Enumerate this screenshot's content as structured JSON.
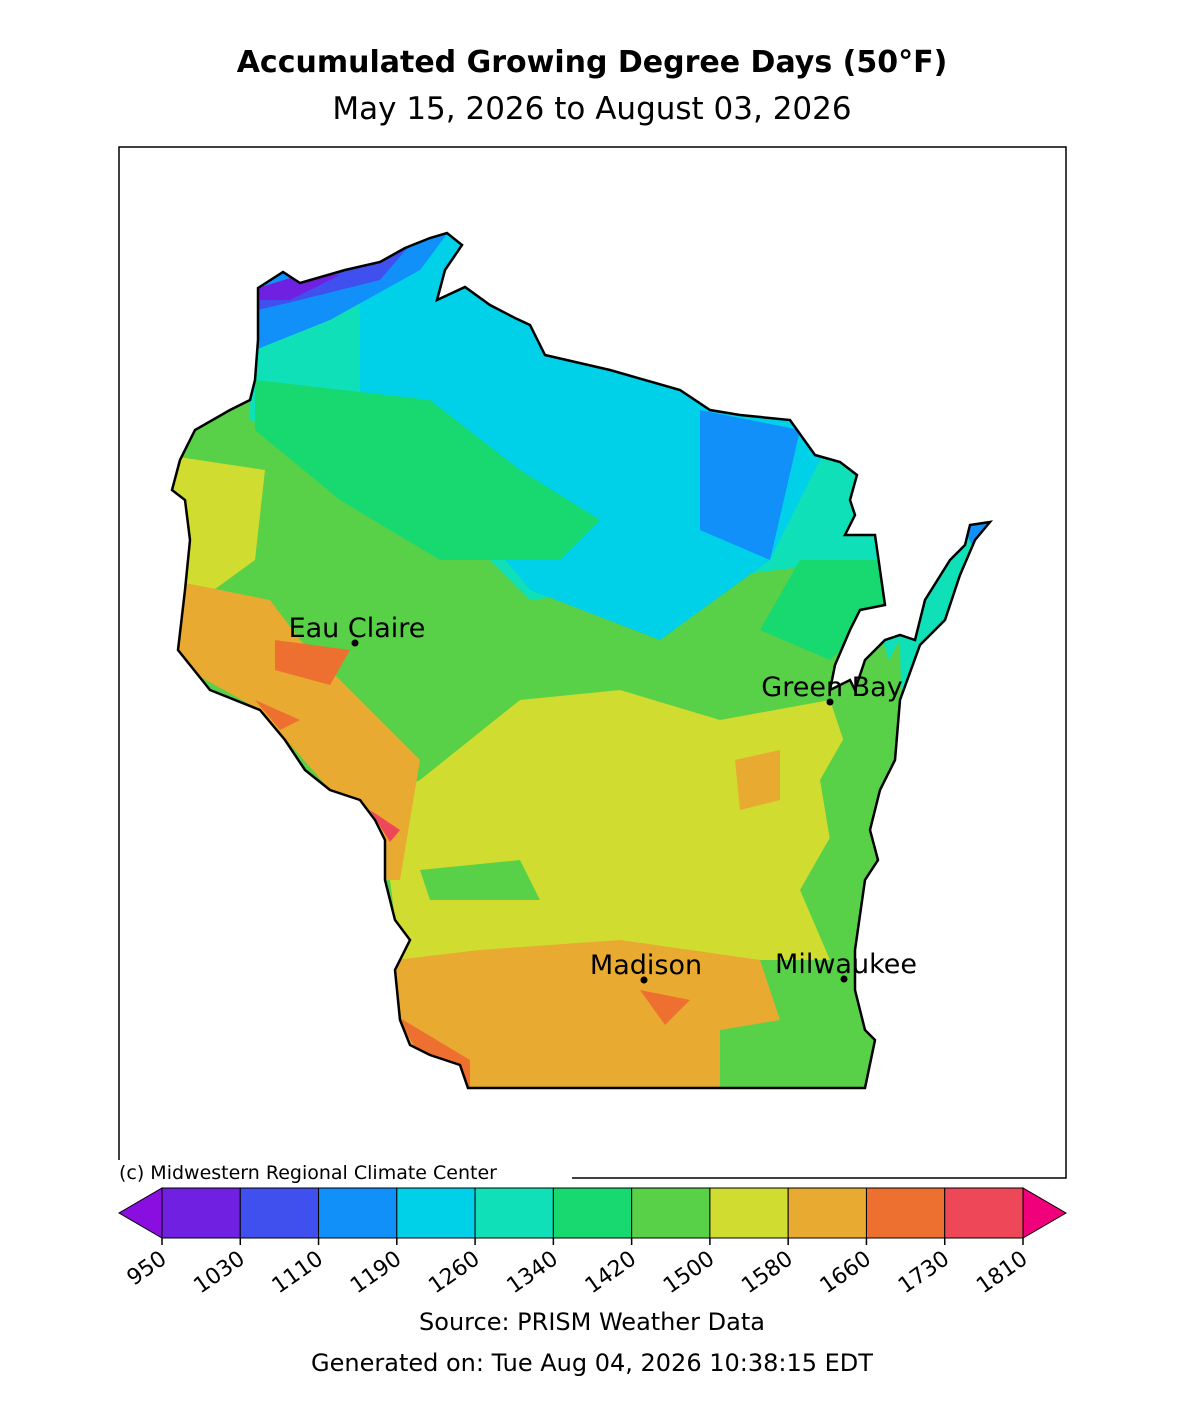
{
  "title": "Accumulated Growing Degree Days (50°F)",
  "subtitle": "May 15, 2026 to August 03, 2026",
  "cities": [
    "Eau Claire",
    "Green Bay",
    "Madison",
    "Milwaukee"
  ],
  "credit": "(c) Midwestern Regional Climate Center",
  "colorbar": {
    "ticks": [
      950,
      1030,
      1110,
      1190,
      1260,
      1340,
      1420,
      1500,
      1580,
      1660,
      1730,
      1810
    ],
    "colors": [
      "#7020e0",
      "#4050ee",
      "#1090f8",
      "#00d0e8",
      "#10e0b8",
      "#18d870",
      "#58d048",
      "#d0dc30",
      "#e8aa30",
      "#ee7030",
      "#ee4858"
    ],
    "under_color": "#8a0ee0",
    "over_color": "#f0007a"
  },
  "source": "Source: PRISM Weather Data",
  "generated": "Generated on: Tue Aug 04, 2026 10:38:15 EDT"
}
